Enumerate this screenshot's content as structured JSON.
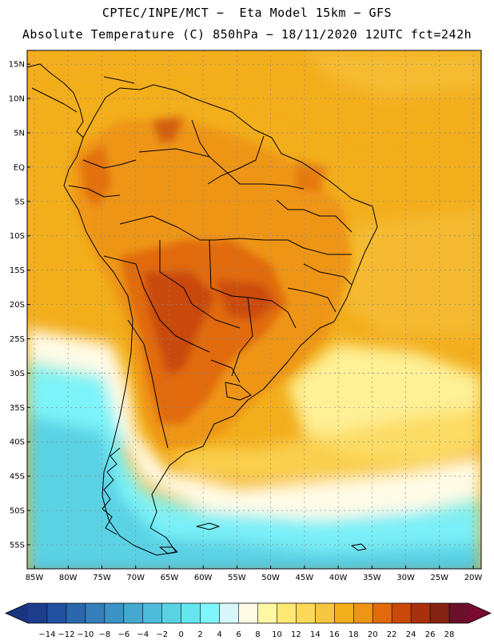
{
  "header": {
    "title_line1": "CPTEC/INPE/MCT −  Eta Model 15km − GFS",
    "title_line2": "Absolute Temperature (C) 850hPa − 18/11/2020 12UTC fct=242h"
  },
  "map": {
    "lat_labels": [
      "15N",
      "10N",
      "5N",
      "EQ",
      "5S",
      "10S",
      "15S",
      "20S",
      "25S",
      "30S",
      "35S",
      "40S",
      "45S",
      "50S",
      "55S"
    ],
    "lon_labels": [
      "85W",
      "80W",
      "75W",
      "70W",
      "65W",
      "60W",
      "55W",
      "50W",
      "45W",
      "40W",
      "35W",
      "30W",
      "25W",
      "20W"
    ]
  },
  "colorbar": {
    "ticks": [
      "-14",
      "-12",
      "-10",
      "-8",
      "-6",
      "-4",
      "-2",
      "0",
      "2",
      "4",
      "6",
      "8",
      "10",
      "12",
      "14",
      "16",
      "18",
      "20",
      "22",
      "24",
      "26",
      "28"
    ],
    "colors": [
      "#1c3d8c",
      "#23519f",
      "#2b67ad",
      "#347eba",
      "#3c93c5",
      "#45a8cf",
      "#4ebcd9",
      "#5ad2e4",
      "#64e6ee",
      "#7ff6fb",
      "#d6f6fa",
      "#fffbe6",
      "#fff7a3",
      "#ffe873",
      "#fbd75a",
      "#f6c541",
      "#f3ae1c",
      "#ee9516",
      "#e16b0c",
      "#c9480a",
      "#a8300c",
      "#842214",
      "#6b0f2a"
    ]
  },
  "legend_colors": {
    "land_outline": "#000000",
    "grid": "#888888"
  }
}
